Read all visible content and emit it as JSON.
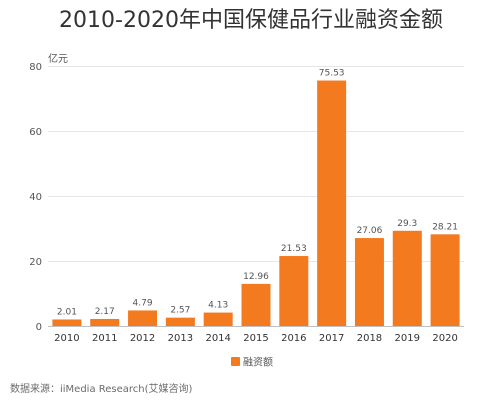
{
  "chart_data": {
    "type": "bar",
    "title": "2010-2020年中国保健品行业融资金额",
    "ylabel": "亿元",
    "xlabel": "",
    "categories": [
      "2010",
      "2011",
      "2012",
      "2013",
      "2014",
      "2015",
      "2016",
      "2017",
      "2018",
      "2019",
      "2020"
    ],
    "series": [
      {
        "name": "融资额",
        "values": [
          2.01,
          2.17,
          4.79,
          2.57,
          4.13,
          12.96,
          21.53,
          75.53,
          27.06,
          29.3,
          28.21
        ],
        "labels": [
          "2.01",
          "2.17",
          "4.79",
          "2.57",
          "4.13",
          "12.96",
          "21.53",
          "75.53",
          "27.06",
          "29.3",
          "28.21"
        ]
      }
    ],
    "ylim": [
      0,
      80
    ],
    "yticks": [
      "0",
      "20",
      "40",
      "60",
      "80"
    ],
    "grid": true,
    "legend_position": "bottom",
    "bar_color": "#F47A20",
    "grid_color": "#e6e6e6",
    "axis_color": "#bfbfbf"
  },
  "source_text": "数据来源：iiMedia Research(艾媒咨询)"
}
